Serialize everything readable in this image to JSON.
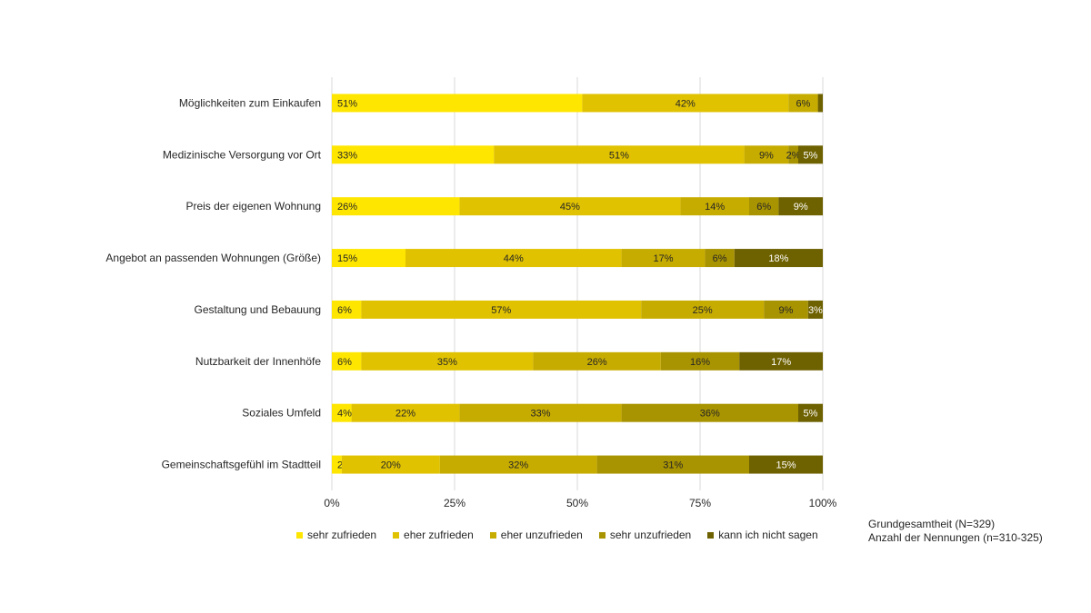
{
  "chart_data": {
    "type": "bar",
    "orientation": "horizontal",
    "stacked": true,
    "percent_stacked": true,
    "categories": [
      "Möglichkeiten zum Einkaufen",
      "Medizinische Versorgung vor Ort",
      "Preis der eigenen Wohnung",
      "Angebot an passenden Wohnungen (Größe)",
      "Gestaltung und Bebauung",
      "Nutzbarkeit der Innenhöfe",
      "Soziales Umfeld",
      "Gemeinschaftsgefühl im Stadtteil"
    ],
    "series": [
      {
        "name": "sehr zufrieden",
        "color": "#FFE600",
        "values": [
          51,
          33,
          26,
          15,
          6,
          6,
          4,
          2
        ]
      },
      {
        "name": "eher zufrieden",
        "color": "#E0C200",
        "values": [
          42,
          51,
          45,
          44,
          57,
          35,
          22,
          20
        ]
      },
      {
        "name": "eher unzufrieden",
        "color": "#C7AC00",
        "values": [
          6,
          9,
          14,
          17,
          25,
          26,
          33,
          32
        ]
      },
      {
        "name": "sehr unzufrieden",
        "color": "#A89300",
        "values": [
          0,
          2,
          6,
          6,
          9,
          16,
          36,
          31
        ]
      },
      {
        "name": "kann ich nicht sagen",
        "color": "#6E6100",
        "values": [
          1,
          5,
          9,
          18,
          3,
          17,
          5,
          15
        ]
      }
    ],
    "labels": [
      [
        "51%",
        "42%",
        "6%",
        "",
        ""
      ],
      [
        "33%",
        "51%",
        "9%",
        "2%",
        "5%"
      ],
      [
        "26%",
        "45%",
        "14%",
        "6%",
        "9%"
      ],
      [
        "15%",
        "44%",
        "17%",
        "6%",
        "18%"
      ],
      [
        "6%",
        "57%",
        "25%",
        "9%",
        "3%"
      ],
      [
        "6%",
        "35%",
        "26%",
        "16%",
        "17%"
      ],
      [
        "4%",
        "22%",
        "33%",
        "36%",
        "5%"
      ],
      [
        "2%",
        "20%",
        "32%",
        "31%",
        "15%"
      ]
    ],
    "label_colors": [
      "#262626",
      "#262626",
      "#262626",
      "#262626",
      "#ffffff"
    ],
    "xlim": [
      0,
      100
    ],
    "xticks": [
      "0%",
      "25%",
      "50%",
      "75%",
      "100%"
    ],
    "grid": true,
    "legend_position": "bottom",
    "title": "",
    "xlabel": "",
    "ylabel": ""
  },
  "notes": {
    "line1": "Grundgesamtheit (N=329)",
    "line2": "Anzahl der Nennungen (n=310-325)"
  }
}
